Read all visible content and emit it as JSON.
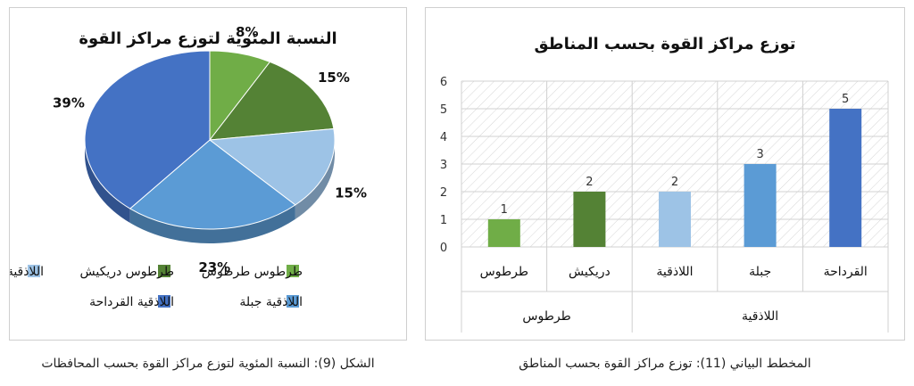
{
  "chart_data": [
    {
      "type": "pie",
      "title": "النسبة المئوية لتوزع مراكز القوة",
      "slices": [
        {
          "label": "طرطوس طرطوس",
          "value": 8,
          "value_label": "8%",
          "color": "#70ad47"
        },
        {
          "label": "طرطوس دريكيش",
          "value": 15,
          "value_label": "15%",
          "color": "#548235"
        },
        {
          "label": "اللاذقية اللاذقية",
          "value": 15,
          "value_label": "15%",
          "color": "#9dc3e6"
        },
        {
          "label": "اللاذقية جبلة",
          "value": 23,
          "value_label": "23%",
          "color": "#5b9bd5"
        },
        {
          "label": "اللاذقية القرداحة",
          "value": 39,
          "value_label": "39%",
          "color": "#4472c4"
        }
      ],
      "legend": "bottom"
    },
    {
      "type": "bar",
      "title": "توزع مراكز القوة بحسب المناطق",
      "categories": [
        "طرطوس",
        "دريكيش",
        "اللاذقية",
        "جبلة",
        "القرداحة"
      ],
      "groups": [
        {
          "label": "طرطوس",
          "categories": [
            "طرطوس",
            "دريكيش"
          ]
        },
        {
          "label": "اللاذقية",
          "categories": [
            "اللاذقية",
            "جبلة",
            "القرداحة"
          ]
        }
      ],
      "values": [
        1,
        2,
        2,
        3,
        5
      ],
      "colors": [
        "#70ad47",
        "#548235",
        "#9dc3e6",
        "#5b9bd5",
        "#4472c4"
      ],
      "ylim": [
        0,
        6
      ],
      "yticks": [
        "0",
        "1",
        "2",
        "3",
        "4",
        "5",
        "6"
      ],
      "grid": true
    }
  ],
  "captions": {
    "pie": "الشكل (9): النسبة المئوية لتوزع مراكز القوة بحسب المحافظات",
    "bar": "المخطط البياني (11): توزع مراكز القوة بحسب المناطق"
  }
}
